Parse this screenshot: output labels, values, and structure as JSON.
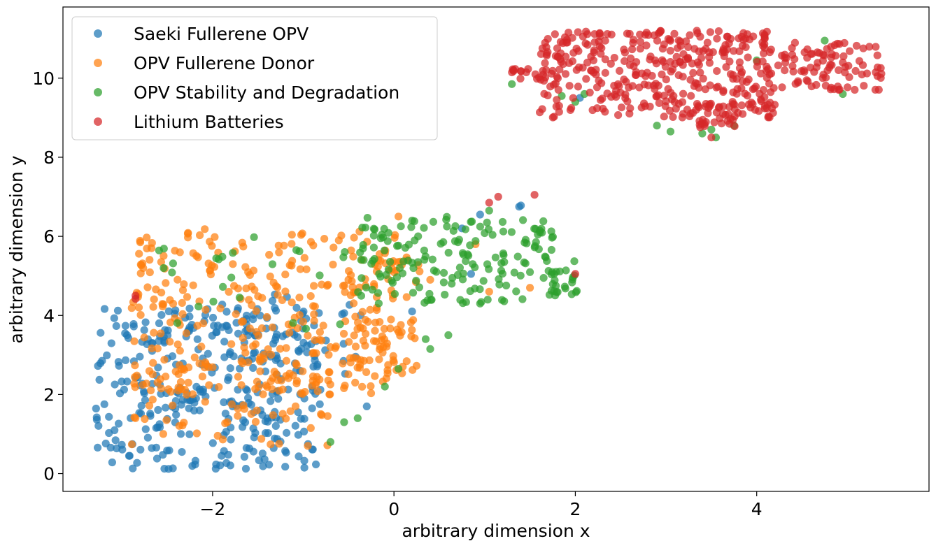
{
  "chart_data": {
    "type": "scatter",
    "xlabel": "arbitrary dimension x",
    "ylabel": "arbitrary dimension y",
    "xlim": [
      -3.65,
      5.9
    ],
    "ylim": [
      -0.45,
      11.8
    ],
    "x_ticks": [
      -2,
      0,
      2,
      4
    ],
    "x_tick_labels": [
      "−2",
      "0",
      "2",
      "4"
    ],
    "y_ticks": [
      0,
      2,
      4,
      6,
      8,
      10
    ],
    "y_tick_labels": [
      "0",
      "2",
      "4",
      "6",
      "8",
      "10"
    ],
    "grid": false,
    "legend_position": "top-left",
    "series": [
      {
        "name": "Saeki Fullerene OPV",
        "color": "#1f77b4",
        "clusters": [
          {
            "x": [
              -3.3,
              -0.8
            ],
            "y": [
              0.1,
              4.2
            ],
            "n": 330
          },
          {
            "x": [
              -2.5,
              -0.3
            ],
            "y": [
              2.5,
              4.6
            ],
            "n": 40
          }
        ],
        "points": [
          [
            1.38,
            6.75
          ],
          [
            1.4,
            6.78
          ],
          [
            0.95,
            6.55
          ],
          [
            2.05,
            9.5
          ],
          [
            0.85,
            5.05
          ],
          [
            0.2,
            4.1
          ],
          [
            -0.3,
            1.7
          ],
          [
            0.75,
            6.2
          ]
        ]
      },
      {
        "name": "OPV Fullerene Donor",
        "color": "#ff7f0e",
        "clusters": [
          {
            "x": [
              -2.9,
              0.1
            ],
            "y": [
              2.0,
              6.2
            ],
            "n": 320
          },
          {
            "x": [
              -2.9,
              -0.7
            ],
            "y": [
              0.7,
              3.0
            ],
            "n": 70
          },
          {
            "x": [
              -0.6,
              0.3
            ],
            "y": [
              2.5,
              5.5
            ],
            "n": 60
          }
        ],
        "points": [
          [
            -2.85,
            1.4
          ],
          [
            0.05,
            6.5
          ],
          [
            -0.95,
            0.7
          ],
          [
            1.5,
            4.7
          ],
          [
            0.9,
            5.8
          ],
          [
            1.05,
            4.6
          ],
          [
            0.4,
            4.9
          ]
        ]
      },
      {
        "name": "OPV Stability and Degradation",
        "color": "#2ca02c",
        "clusters": [
          {
            "x": [
              -0.4,
              1.8
            ],
            "y": [
              4.3,
              6.5
            ],
            "n": 170
          },
          {
            "x": [
              1.7,
              2.05
            ],
            "y": [
              4.5,
              5.5
            ],
            "n": 22
          },
          {
            "x": [
              -2.8,
              -0.5
            ],
            "y": [
              3.6,
              6.0
            ],
            "n": 25
          }
        ],
        "points": [
          [
            1.3,
            9.85
          ],
          [
            1.85,
            9.55
          ],
          [
            2.0,
            9.4
          ],
          [
            2.1,
            9.6
          ],
          [
            2.9,
            8.8
          ],
          [
            3.05,
            8.65
          ],
          [
            3.4,
            8.6
          ],
          [
            3.55,
            8.5
          ],
          [
            3.5,
            8.7
          ],
          [
            3.75,
            8.8
          ],
          [
            4.0,
            10.45
          ],
          [
            4.75,
            10.95
          ],
          [
            4.95,
            9.6
          ],
          [
            -0.7,
            0.8
          ],
          [
            -0.55,
            1.3
          ],
          [
            -0.4,
            1.4
          ],
          [
            -0.1,
            2.2
          ],
          [
            0.05,
            2.65
          ],
          [
            0.35,
            3.4
          ],
          [
            0.4,
            3.15
          ],
          [
            0.6,
            3.5
          ],
          [
            0.95,
            4.3
          ],
          [
            1.05,
            6.65
          ]
        ]
      },
      {
        "name": "Lithium Batteries",
        "color": "#d62728",
        "clusters": [
          {
            "x": [
              1.6,
              4.2
            ],
            "y": [
              9.0,
              11.2
            ],
            "n": 380
          },
          {
            "x": [
              4.2,
              5.4
            ],
            "y": [
              9.7,
              10.9
            ],
            "n": 90
          },
          {
            "x": [
              1.3,
              1.7
            ],
            "y": [
              9.95,
              10.25
            ],
            "n": 15
          },
          {
            "x": [
              3.35,
              3.8
            ],
            "y": [
              8.75,
              9.35
            ],
            "n": 25
          }
        ],
        "points": [
          [
            1.55,
            7.05
          ],
          [
            1.15,
            7.0
          ],
          [
            1.05,
            6.85
          ],
          [
            -2.85,
            4.5
          ],
          [
            -2.85,
            4.42
          ],
          [
            2.0,
            5.05
          ],
          [
            3.5,
            8.5
          ]
        ]
      }
    ]
  }
}
